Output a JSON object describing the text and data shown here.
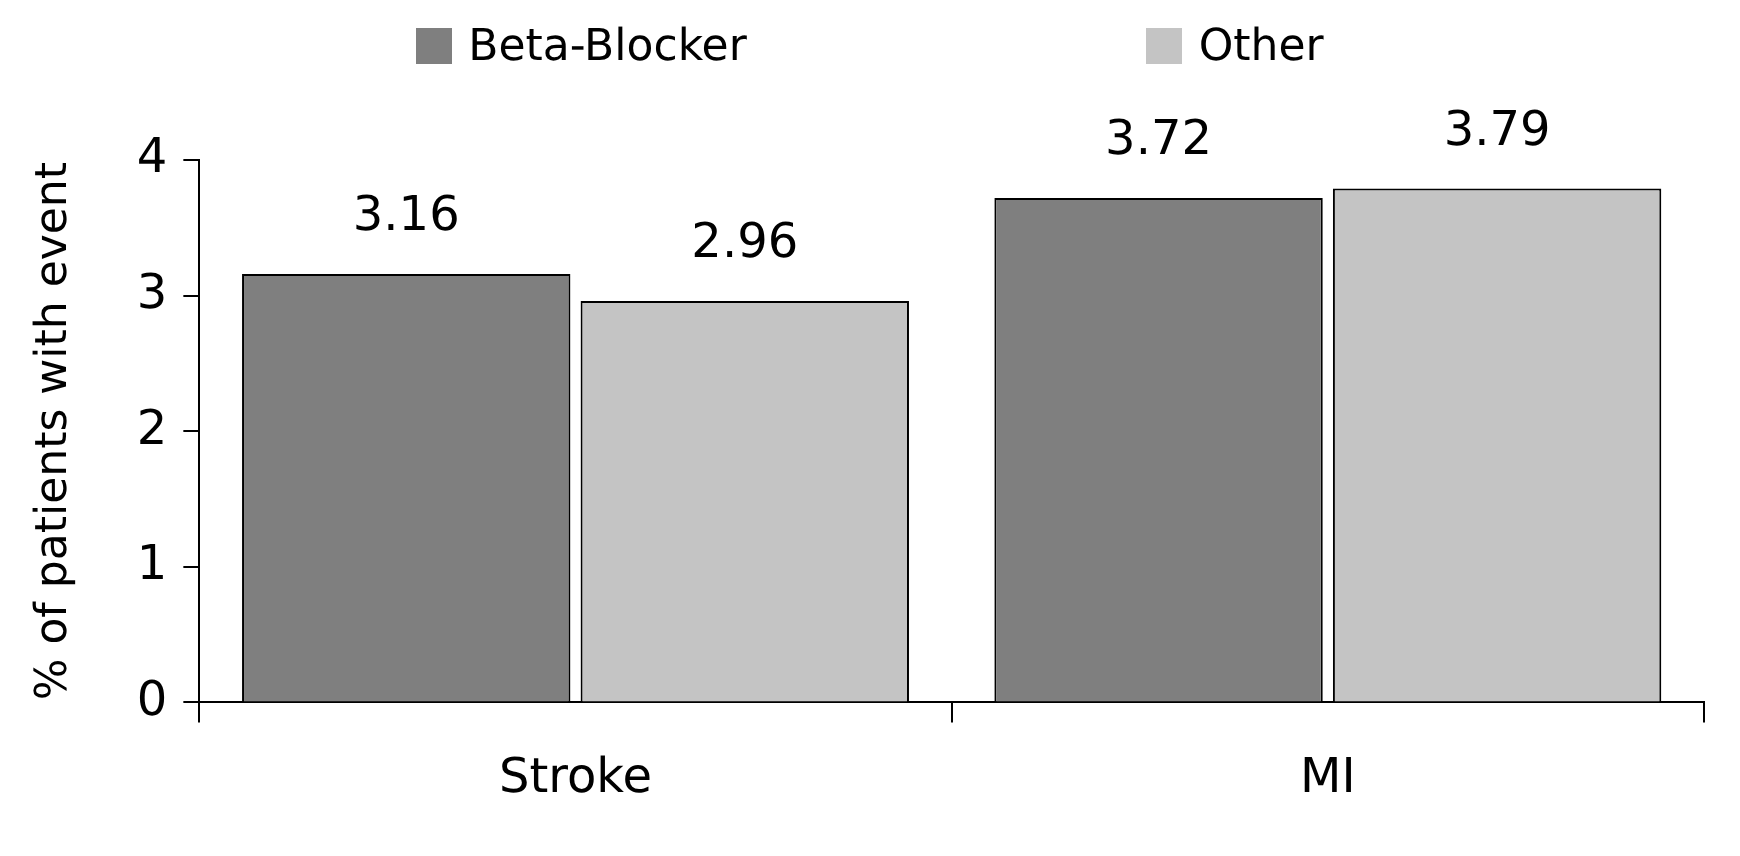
{
  "chart_data": {
    "type": "bar",
    "ylabel": "% of patients with event",
    "categories": [
      "Stroke",
      "MI"
    ],
    "series": [
      {
        "name": "Beta-Blocker",
        "color": "#7f7f7f",
        "values": [
          3.16,
          3.72
        ]
      },
      {
        "name": "Other",
        "color": "#c4c4c4",
        "values": [
          2.96,
          3.79
        ]
      }
    ],
    "ylim": [
      0,
      4
    ],
    "yticks": [
      0,
      1,
      2,
      3,
      4
    ],
    "grid": false,
    "legend": "top",
    "data_labels": true
  }
}
